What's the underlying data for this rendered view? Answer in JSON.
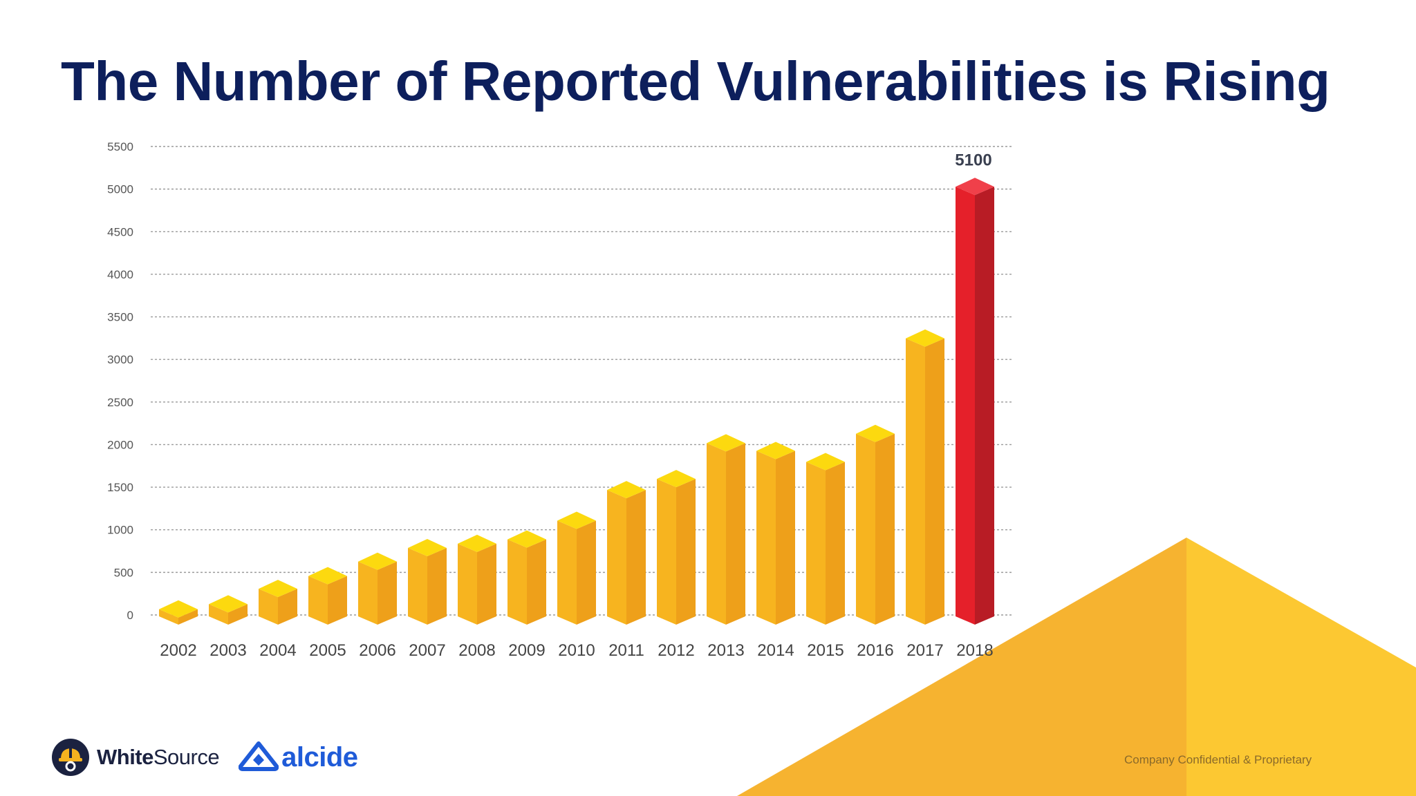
{
  "slide": {
    "title": "The Number of Reported Vulnerabilities is Rising",
    "footer_note": "Company Confidential & Proprietary"
  },
  "logos": {
    "whitesource_bold": "White",
    "whitesource_rest": "Source",
    "alcide": "alcide"
  },
  "colors": {
    "title": "#0d1f5c",
    "bar_front": "#f7b41f",
    "bar_side": "#eea01a",
    "bar_top": "#fcd90f",
    "highlight_front": "#e5202a",
    "highlight_side": "#b81c25",
    "highlight_top": "#f0404a",
    "deco_left": "#f6b330",
    "deco_right": "#fcc832"
  },
  "chart_data": {
    "type": "bar",
    "title": "",
    "xlabel": "",
    "ylabel": "",
    "ylim": [
      0,
      5500
    ],
    "yticks": [
      0,
      500,
      1000,
      1500,
      2000,
      2500,
      3000,
      3500,
      4000,
      4500,
      5000,
      5500
    ],
    "grid": true,
    "categories": [
      "2002",
      "2003",
      "2004",
      "2005",
      "2006",
      "2007",
      "2008",
      "2009",
      "2010",
      "2011",
      "2012",
      "2013",
      "2014",
      "2015",
      "2016",
      "2017",
      "2018"
    ],
    "values": [
      140,
      200,
      380,
      530,
      700,
      860,
      910,
      960,
      1180,
      1540,
      1670,
      2090,
      2000,
      1870,
      2200,
      3320,
      5100
    ],
    "highlight_index": 16,
    "data_labels": [
      {
        "index": 16,
        "text": "5100"
      }
    ]
  }
}
